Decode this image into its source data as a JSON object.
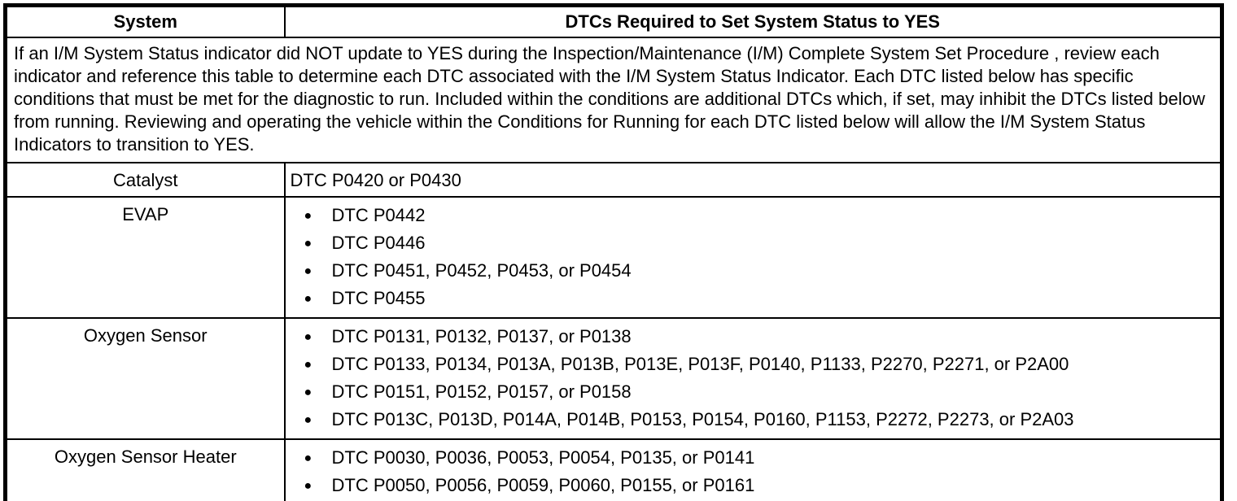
{
  "icons": {
    "bullet": "●"
  },
  "table": {
    "header": {
      "system": "System",
      "dtcs": "DTCs Required to Set System Status to YES"
    },
    "intro": "If an I/M System Status indicator did NOT update to YES during the Inspection/Maintenance (I/M) Complete System Set Procedure , review each indicator and reference this table to determine each DTC associated with the I/M System Status Indicator. Each DTC listed below has specific conditions that must be met for the diagnostic to run. Included within the conditions are additional DTCs which, if set, may inhibit the DTCs listed below from running. Reviewing and operating the vehicle within the Conditions for Running for each DTC listed below will allow the I/M System Status Indicators to transition to YES.",
    "rows": [
      {
        "system": "Catalyst",
        "dtc_text": "DTC P0420 or P0430"
      },
      {
        "system": "EVAP",
        "items": [
          "DTC P0442",
          "DTC P0446",
          "DTC P0451, P0452, P0453, or P0454",
          "DTC P0455"
        ]
      },
      {
        "system": "Oxygen Sensor",
        "items": [
          "DTC P0131, P0132, P0137, or P0138",
          "DTC P0133, P0134, P013A, P013B, P013E, P013F, P0140, P1133, P2270, P2271, or P2A00",
          "DTC P0151, P0152, P0157, or P0158",
          "DTC P013C, P013D, P014A, P014B, P0153, P0154, P0160, P1153, P2272, P2273, or P2A03"
        ]
      },
      {
        "system": "Oxygen Sensor Heater",
        "items": [
          "DTC P0030, P0036, P0053, P0054, P0135, or P0141",
          "DTC P0050, P0056, P0059, P0060, P0155, or P0161"
        ]
      }
    ],
    "colors": {
      "border": "#000000",
      "text": "#000000",
      "background": "#ffffff"
    }
  }
}
